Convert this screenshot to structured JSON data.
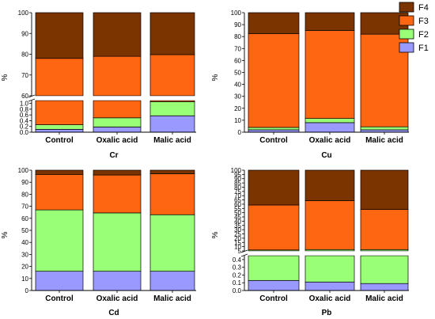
{
  "colors": {
    "F1": "#9999ff",
    "F2": "#99ff77",
    "F3": "#ff6611",
    "F4": "#7b3300"
  },
  "legend": [
    "F4",
    "F3",
    "F2",
    "F1"
  ],
  "chart_data": [
    {
      "type": "bar",
      "stacked": true,
      "title": "Cr",
      "ylabel": "%",
      "categories": [
        "Control",
        "Oxalic acid",
        "Malic acid"
      ],
      "axis_break": true,
      "ylim_lower": [
        0,
        1.1
      ],
      "ylim_upper": [
        60,
        100
      ],
      "ticks_lower": [
        "0.0",
        "0.2",
        "0.4",
        "0.6",
        "0.8",
        "1.0"
      ],
      "ticks_upper": [
        "60",
        "70",
        "80",
        "90",
        "100"
      ],
      "series": [
        {
          "name": "F1",
          "values": [
            0.1,
            0.18,
            0.57
          ]
        },
        {
          "name": "F2",
          "values": [
            0.16,
            0.32,
            0.49
          ]
        },
        {
          "name": "F3",
          "values": [
            77.74,
            78.5,
            78.74
          ]
        },
        {
          "name": "F4",
          "values": [
            22.0,
            21.0,
            20.2
          ]
        }
      ]
    },
    {
      "type": "bar",
      "stacked": true,
      "title": "Cu",
      "ylabel": "%",
      "categories": [
        "Control",
        "Oxalic acid",
        "Malic acid"
      ],
      "axis_break": false,
      "ylim": [
        0,
        100
      ],
      "ticks": [
        "0",
        "10",
        "20",
        "30",
        "40",
        "50",
        "60",
        "70",
        "80",
        "90",
        "100"
      ],
      "series": [
        {
          "name": "F1",
          "values": [
            2,
            8,
            2
          ]
        },
        {
          "name": "F2",
          "values": [
            2,
            3.5,
            2.5
          ]
        },
        {
          "name": "F3",
          "values": [
            78.5,
            73.5,
            77.5
          ]
        },
        {
          "name": "F4",
          "values": [
            17.5,
            15,
            18
          ]
        }
      ]
    },
    {
      "type": "bar",
      "stacked": true,
      "title": "Cd",
      "ylabel": "%",
      "categories": [
        "Control",
        "Oxalic acid",
        "Malic acid"
      ],
      "axis_break": false,
      "ylim": [
        0,
        100
      ],
      "ticks": [
        "0",
        "10",
        "20",
        "30",
        "40",
        "50",
        "60",
        "70",
        "80",
        "90",
        "100"
      ],
      "series": [
        {
          "name": "F1",
          "values": [
            16,
            16,
            16
          ]
        },
        {
          "name": "F2",
          "values": [
            51,
            48.5,
            47
          ]
        },
        {
          "name": "F3",
          "values": [
            29.5,
            31.5,
            34
          ]
        },
        {
          "name": "F4",
          "values": [
            3.5,
            4,
            3
          ]
        }
      ]
    },
    {
      "type": "bar",
      "stacked": true,
      "title": "Pb",
      "ylabel": "%",
      "categories": [
        "Control",
        "Oxalic acid",
        "Malic acid"
      ],
      "axis_break": true,
      "ylim_lower": [
        0,
        0.45
      ],
      "ylim_upper": [
        5,
        100
      ],
      "ticks_lower": [
        "0.0",
        "0.1",
        "0.2",
        "0.3",
        "0.4"
      ],
      "ticks_upper": [
        "5",
        "10",
        "15",
        "20",
        "25",
        "30",
        "35",
        "40",
        "45",
        "50",
        "55",
        "60",
        "65",
        "70",
        "75",
        "80",
        "85",
        "90",
        "95",
        "100"
      ],
      "series": [
        {
          "name": "F1",
          "values": [
            0.13,
            0.11,
            0.09
          ]
        },
        {
          "name": "F2",
          "values": [
            6,
            6.5,
            6.5
          ]
        },
        {
          "name": "F3",
          "values": [
            52.9,
            57.4,
            47.4
          ]
        },
        {
          "name": "F4",
          "values": [
            41,
            36,
            46
          ]
        }
      ]
    }
  ]
}
